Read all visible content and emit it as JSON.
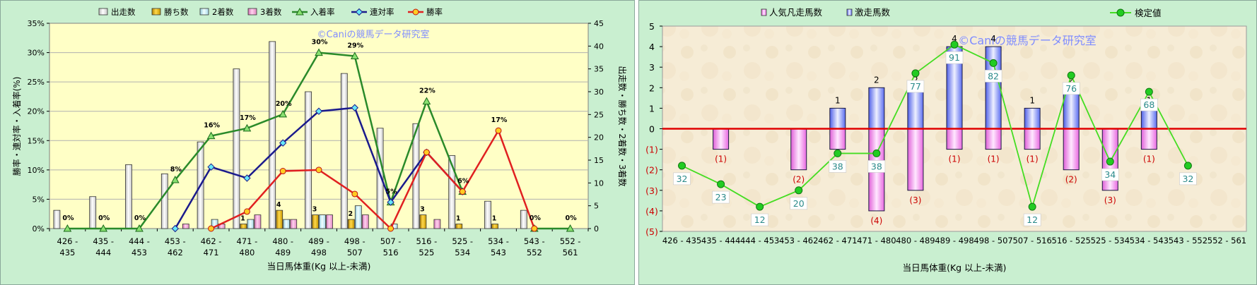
{
  "chart_data": [
    {
      "type": "bar",
      "title": "",
      "watermark": "©Caniの競馬データ研究室",
      "xlabel": "当日馬体重(Kg 以上-未満)",
      "ylabel_left": "勝率・連対率・入着率(%)",
      "ylabel_right": "出走数・勝ち数・2着数・3着数",
      "ylim_left": [
        0,
        35
      ],
      "ylim_right": [
        0,
        45
      ],
      "legend_position": "top",
      "categories": [
        [
          "426 -",
          "435"
        ],
        [
          "435 -",
          "444"
        ],
        [
          "444 -",
          "453"
        ],
        [
          "453 -",
          "462"
        ],
        [
          "462 -",
          "471"
        ],
        [
          "471 -",
          "480"
        ],
        [
          "480 -",
          "489"
        ],
        [
          "489 -",
          "498"
        ],
        [
          "498 -",
          "507"
        ],
        [
          "507 -",
          "516"
        ],
        [
          "516 -",
          "525"
        ],
        [
          "525 -",
          "534"
        ],
        [
          "534 -",
          "543"
        ],
        [
          "543 -",
          "552"
        ],
        [
          "552 -",
          "561"
        ]
      ],
      "bar_series": [
        {
          "name": "出走数",
          "color": "#f2f2f2",
          "values": [
            4,
            7,
            14,
            12,
            19,
            35,
            41,
            30,
            34,
            22,
            23,
            16,
            6,
            4,
            0
          ]
        },
        {
          "name": "勝ち数",
          "color": "#e0b000",
          "values": [
            0,
            0,
            0,
            0,
            0,
            1,
            4,
            3,
            2,
            0,
            3,
            1,
            1,
            0,
            0
          ]
        },
        {
          "name": "2着数",
          "color": "#c8ecf4",
          "values": [
            0,
            0,
            0,
            0,
            2,
            2,
            2,
            3,
            5,
            1,
            0,
            0,
            0,
            0,
            0
          ]
        },
        {
          "name": "3着数",
          "color": "#f0a0d0",
          "values": [
            0,
            0,
            0,
            1,
            1,
            3,
            2,
            3,
            3,
            0,
            2,
            0,
            0,
            0,
            0
          ]
        }
      ],
      "line_series": [
        {
          "name": "入着率",
          "color": "#2a8a2a",
          "marker": "triangle",
          "values": [
            0,
            0,
            0,
            8.3,
            15.8,
            17.1,
            19.5,
            30,
            29.4,
            4.5,
            21.7,
            6.3,
            null,
            0,
            0
          ]
        },
        {
          "name": "連対率",
          "color": "#1a1a8c",
          "marker": "diamond",
          "values": [
            null,
            null,
            null,
            0,
            10.5,
            8.6,
            14.6,
            20,
            20.6,
            4.5,
            13,
            6.3,
            null,
            null,
            null
          ]
        },
        {
          "name": "勝率",
          "color": "#e02020",
          "marker": "circle",
          "values": [
            null,
            null,
            null,
            null,
            0,
            2.9,
            9.8,
            10,
            5.9,
            0,
            13,
            6.3,
            16.7,
            0,
            null
          ]
        }
      ],
      "point_labels": [
        {
          "i": 0,
          "text": "0%"
        },
        {
          "i": 1,
          "text": "0%"
        },
        {
          "i": 2,
          "text": "0%"
        },
        {
          "i": 3,
          "text": "8%"
        },
        {
          "i": 4,
          "text": "16%"
        },
        {
          "i": 5,
          "text": "17%"
        },
        {
          "i": 6,
          "text": "20%"
        },
        {
          "i": 7,
          "text": "30%"
        },
        {
          "i": 8,
          "text": "29%"
        },
        {
          "i": 9,
          "text": "5%"
        },
        {
          "i": 10,
          "text": "22%"
        },
        {
          "i": 11,
          "text": "6%"
        },
        {
          "i": 12,
          "text": "17%"
        },
        {
          "i": 13,
          "text": "0%"
        },
        {
          "i": 14,
          "text": "0%"
        }
      ],
      "win_labels": [
        {
          "i": 5,
          "text": "1"
        },
        {
          "i": 6,
          "text": "4"
        },
        {
          "i": 7,
          "text": "3"
        },
        {
          "i": 8,
          "text": "2"
        },
        {
          "i": 10,
          "text": "3"
        },
        {
          "i": 11,
          "text": "1"
        },
        {
          "i": 12,
          "text": "1"
        }
      ]
    },
    {
      "type": "bar",
      "title": "",
      "watermark": "©Caniの競馬データ研究室",
      "xlabel": "当日馬体重(Kg 以上-未満)",
      "ylim": [
        -5,
        5
      ],
      "ytick_labels": [
        "5",
        "4",
        "3",
        "2",
        "1",
        "0",
        "(1)",
        "(2)",
        "(3)",
        "(4)",
        "(5)"
      ],
      "legend_position": "top",
      "categories": [
        "426 - 435",
        "435 - 444",
        "444 - 453",
        "453 - 462",
        "462 - 471",
        "471 - 480",
        "480 - 489",
        "489 - 498",
        "498 - 507",
        "507 - 516",
        "516 - 525",
        "525 - 534",
        "534 - 543",
        "543 - 552",
        "552 - 561"
      ],
      "bar_series": [
        {
          "name": "人気凡走馬数",
          "color": "#f070e0",
          "values": [
            0,
            -1,
            0,
            -2,
            -1,
            -4,
            -3,
            -1,
            -1,
            -1,
            -2,
            -3,
            -1,
            0,
            0
          ]
        },
        {
          "name": "激走馬数",
          "color": "#5a6cf0",
          "values": [
            0,
            0,
            0,
            0,
            1,
            2,
            2,
            4,
            4,
            1,
            2,
            0,
            1,
            0,
            0
          ]
        }
      ],
      "line_series": [
        {
          "name": "検定値",
          "color": "#44dd22",
          "values": [
            32,
            23,
            12,
            20,
            38,
            38,
            77,
            91,
            82,
            12,
            76,
            34,
            68,
            32,
            null
          ]
        }
      ],
      "pos_labels": [
        {
          "i": 4,
          "text": "1"
        },
        {
          "i": 5,
          "text": "2"
        },
        {
          "i": 6,
          "text": "2"
        },
        {
          "i": 7,
          "text": "4"
        },
        {
          "i": 8,
          "text": "4"
        },
        {
          "i": 9,
          "text": "1"
        },
        {
          "i": 10,
          "text": "2"
        },
        {
          "i": 12,
          "text": "1"
        }
      ],
      "neg_labels": [
        {
          "i": 1,
          "text": "(1)"
        },
        {
          "i": 3,
          "text": "(2)"
        },
        {
          "i": 5,
          "text": "(4)"
        },
        {
          "i": 6,
          "text": "(3)"
        },
        {
          "i": 7,
          "text": "(1)"
        },
        {
          "i": 8,
          "text": "(1)"
        },
        {
          "i": 9,
          "text": "(1)"
        },
        {
          "i": 10,
          "text": "(2)"
        },
        {
          "i": 11,
          "text": "(3)"
        },
        {
          "i": 12,
          "text": "(1)"
        }
      ]
    }
  ]
}
